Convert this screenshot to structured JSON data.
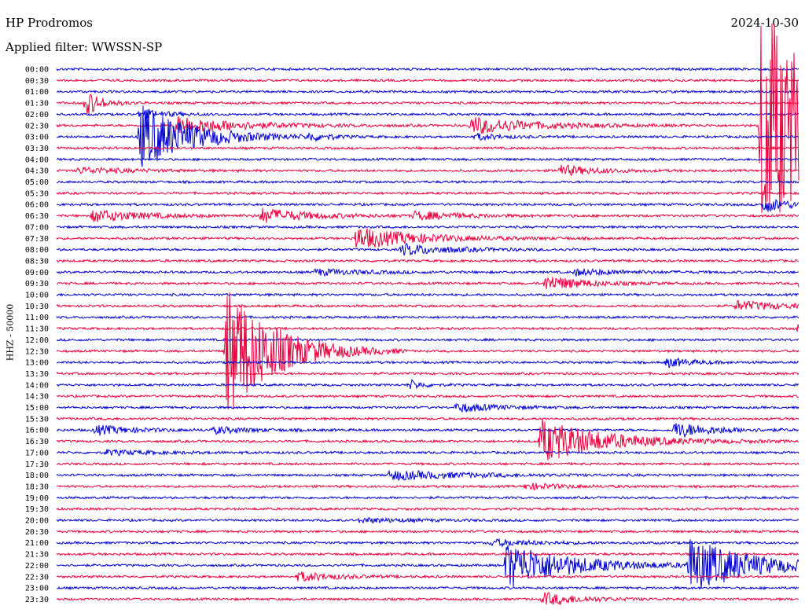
{
  "header": {
    "station": "HP Prodromos",
    "filter": "Applied filter: WWSSN-SP",
    "date": "2024-10-30"
  },
  "chart_data": {
    "type": "line",
    "title": "HP Prodromos",
    "subtitle": "Applied filter: WWSSN-SP",
    "date": "2024-10-30",
    "ylabel": "HHZ - 50000",
    "row_labels": [
      "00:00",
      "00:30",
      "01:00",
      "01:30",
      "02:00",
      "02:30",
      "03:00",
      "03:30",
      "04:00",
      "04:30",
      "05:00",
      "05:30",
      "06:00",
      "06:30",
      "07:00",
      "07:30",
      "08:00",
      "08:30",
      "09:00",
      "09:30",
      "10:00",
      "10:30",
      "11:00",
      "11:30",
      "12:00",
      "12:30",
      "13:00",
      "13:30",
      "14:00",
      "14:30",
      "15:00",
      "15:30",
      "16:00",
      "16:30",
      "17:00",
      "17:30",
      "18:00",
      "18:30",
      "19:00",
      "19:30",
      "20:00",
      "20:30",
      "21:00",
      "21:30",
      "22:00",
      "22:30",
      "23:00",
      "23:30"
    ],
    "row_minutes": 30,
    "colors": {
      "even_rows": "#0000d0",
      "odd_rows": "#e8003c",
      "text": "#000000"
    },
    "events": [
      {
        "row": 3,
        "minute": 1.2,
        "amp": 16,
        "decay": 0.6
      },
      {
        "row": 4,
        "minute": 3.4,
        "amp": 6,
        "decay": 1.0
      },
      {
        "row": 5,
        "minute": 4.8,
        "amp": 12,
        "decay": 2.5
      },
      {
        "row": 5,
        "minute": 16.8,
        "amp": 11,
        "decay": 2.5
      },
      {
        "row": 5,
        "minute": 28.5,
        "amp": 160,
        "decay": 2.5
      },
      {
        "row": 6,
        "minute": 3.4,
        "amp": 42,
        "decay": 2.0
      },
      {
        "row": 6,
        "minute": 10.2,
        "amp": 4,
        "decay": 1.0
      },
      {
        "row": 6,
        "minute": 17.0,
        "amp": 4,
        "decay": 1.0
      },
      {
        "row": 9,
        "minute": 0.9,
        "amp": 4,
        "decay": 2.0
      },
      {
        "row": 9,
        "minute": 20.3,
        "amp": 7,
        "decay": 1.5
      },
      {
        "row": 12,
        "minute": 28.6,
        "amp": 10,
        "decay": 1.0
      },
      {
        "row": 13,
        "minute": 1.5,
        "amp": 8,
        "decay": 2.0
      },
      {
        "row": 13,
        "minute": 8.3,
        "amp": 9,
        "decay": 2.0
      },
      {
        "row": 13,
        "minute": 14.5,
        "amp": 5,
        "decay": 2.0
      },
      {
        "row": 15,
        "minute": 12.1,
        "amp": 14,
        "decay": 2.5
      },
      {
        "row": 16,
        "minute": 14.0,
        "amp": 7,
        "decay": 2.0
      },
      {
        "row": 18,
        "minute": 10.5,
        "amp": 4,
        "decay": 2.0
      },
      {
        "row": 18,
        "minute": 21.0,
        "amp": 4,
        "decay": 2.0
      },
      {
        "row": 19,
        "minute": 19.8,
        "amp": 10,
        "decay": 1.5
      },
      {
        "row": 19,
        "minute": 30.0,
        "amp": 6,
        "decay": 1.5
      },
      {
        "row": 21,
        "minute": 27.5,
        "amp": 6,
        "decay": 2.0
      },
      {
        "row": 23,
        "minute": 30.0,
        "amp": 6,
        "decay": 1.5
      },
      {
        "row": 25,
        "minute": 6.9,
        "amp": 90,
        "decay": 1.8
      },
      {
        "row": 26,
        "minute": 24.7,
        "amp": 6,
        "decay": 1.0
      },
      {
        "row": 28,
        "minute": 14.3,
        "amp": 6,
        "decay": 0.5
      },
      {
        "row": 30,
        "minute": 16.2,
        "amp": 6,
        "decay": 1.5
      },
      {
        "row": 32,
        "minute": 1.6,
        "amp": 6,
        "decay": 1.5
      },
      {
        "row": 32,
        "minute": 6.4,
        "amp": 4,
        "decay": 1.5
      },
      {
        "row": 32,
        "minute": 25.0,
        "amp": 10,
        "decay": 1.5
      },
      {
        "row": 33,
        "minute": 19.6,
        "amp": 28,
        "decay": 2.5
      },
      {
        "row": 34,
        "minute": 2.0,
        "amp": 3,
        "decay": 2.0
      },
      {
        "row": 36,
        "minute": 13.5,
        "amp": 6,
        "decay": 3.0
      },
      {
        "row": 37,
        "minute": 19.0,
        "amp": 4,
        "decay": 1.5
      },
      {
        "row": 40,
        "minute": 12.3,
        "amp": 3,
        "decay": 2.0
      },
      {
        "row": 42,
        "minute": 17.6,
        "amp": 4,
        "decay": 2.0
      },
      {
        "row": 44,
        "minute": 18.2,
        "amp": 30,
        "decay": 2.5
      },
      {
        "row": 44,
        "minute": 25.6,
        "amp": 34,
        "decay": 2.5
      },
      {
        "row": 45,
        "minute": 9.8,
        "amp": 6,
        "decay": 1.5
      },
      {
        "row": 47,
        "minute": 19.7,
        "amp": 8,
        "decay": 1.5
      }
    ]
  }
}
